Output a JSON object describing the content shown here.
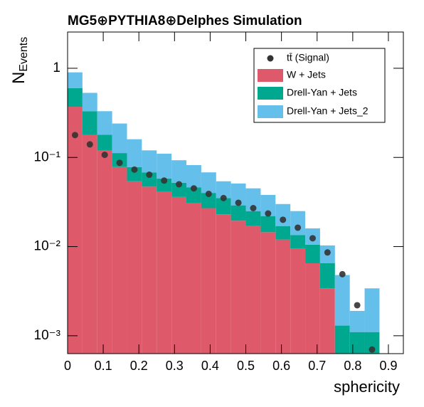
{
  "chart_data": {
    "type": "histogram",
    "stacked": true,
    "title": "MG5⊕PYTHIA8⊕Delphes Simulation",
    "x_label": "sphericity",
    "y_label": {
      "main": "N",
      "sub": "Events"
    },
    "ylog": true,
    "legend": "top-right",
    "bins": [
      0,
      0.0417,
      0.0833,
      0.125,
      0.1667,
      0.2083,
      0.25,
      0.2917,
      0.3333,
      0.375,
      0.4167,
      0.4583,
      0.5,
      0.5417,
      0.5833,
      0.625,
      0.6667,
      0.7083,
      0.75,
      0.7917,
      0.8333,
      0.875
    ],
    "series": [
      {
        "name": "W + Jets",
        "color": "#de5a6a",
        "values": [
          0.37,
          0.178,
          0.119,
          0.078,
          0.054,
          0.047,
          0.041,
          0.036,
          0.031,
          0.027,
          0.023,
          0.0195,
          0.017,
          0.0145,
          0.012,
          0.0095,
          0.0065,
          0.0034,
          0,
          0,
          0
        ]
      },
      {
        "name": "Drell-Yan + Jets",
        "color": "#00a88f",
        "values": [
          0.23,
          0.152,
          0.061,
          0.034,
          0.024,
          0.021,
          0.017,
          0.016,
          0.015,
          0.013,
          0.012,
          0.0095,
          0.008,
          0.0075,
          0.005,
          0.004,
          0.004,
          0.0031,
          0.0013,
          0.0011,
          0.0011
        ]
      },
      {
        "name": "Drell-Yan + Jets_2",
        "color": "#64bfeb",
        "values": [
          0.3,
          0.2,
          0.15,
          0.128,
          0.082,
          0.052,
          0.052,
          0.041,
          0.036,
          0.028,
          0.019,
          0.022,
          0.02,
          0.016,
          0.013,
          0.0115,
          0.0055,
          0.0038,
          0.0035,
          0.0008,
          0.0023
        ]
      }
    ],
    "signal": {
      "name": "tt̄ (Signal)",
      "color": "#333333",
      "values": [
        0.178,
        0.14,
        0.107,
        0.087,
        0.073,
        0.064,
        0.055,
        0.05,
        0.045,
        0.039,
        0.035,
        0.031,
        0.027,
        0.0235,
        0.02,
        0.0163,
        0.0124,
        0.0086,
        0.0049,
        0.0022,
        0.0007
      ]
    },
    "xlim": [
      0,
      0.942
    ],
    "ylim": [
      0.00063,
      2.55
    ],
    "xticks": [
      0,
      0.1,
      0.2,
      0.3,
      0.4,
      0.5,
      0.6,
      0.7,
      0.8,
      0.9
    ],
    "yticks": [
      {
        "value": 0.001,
        "label": "10⁻³"
      },
      {
        "value": 0.01,
        "label": "10⁻²"
      },
      {
        "value": 0.1,
        "label": "10⁻¹"
      },
      1
    ]
  }
}
